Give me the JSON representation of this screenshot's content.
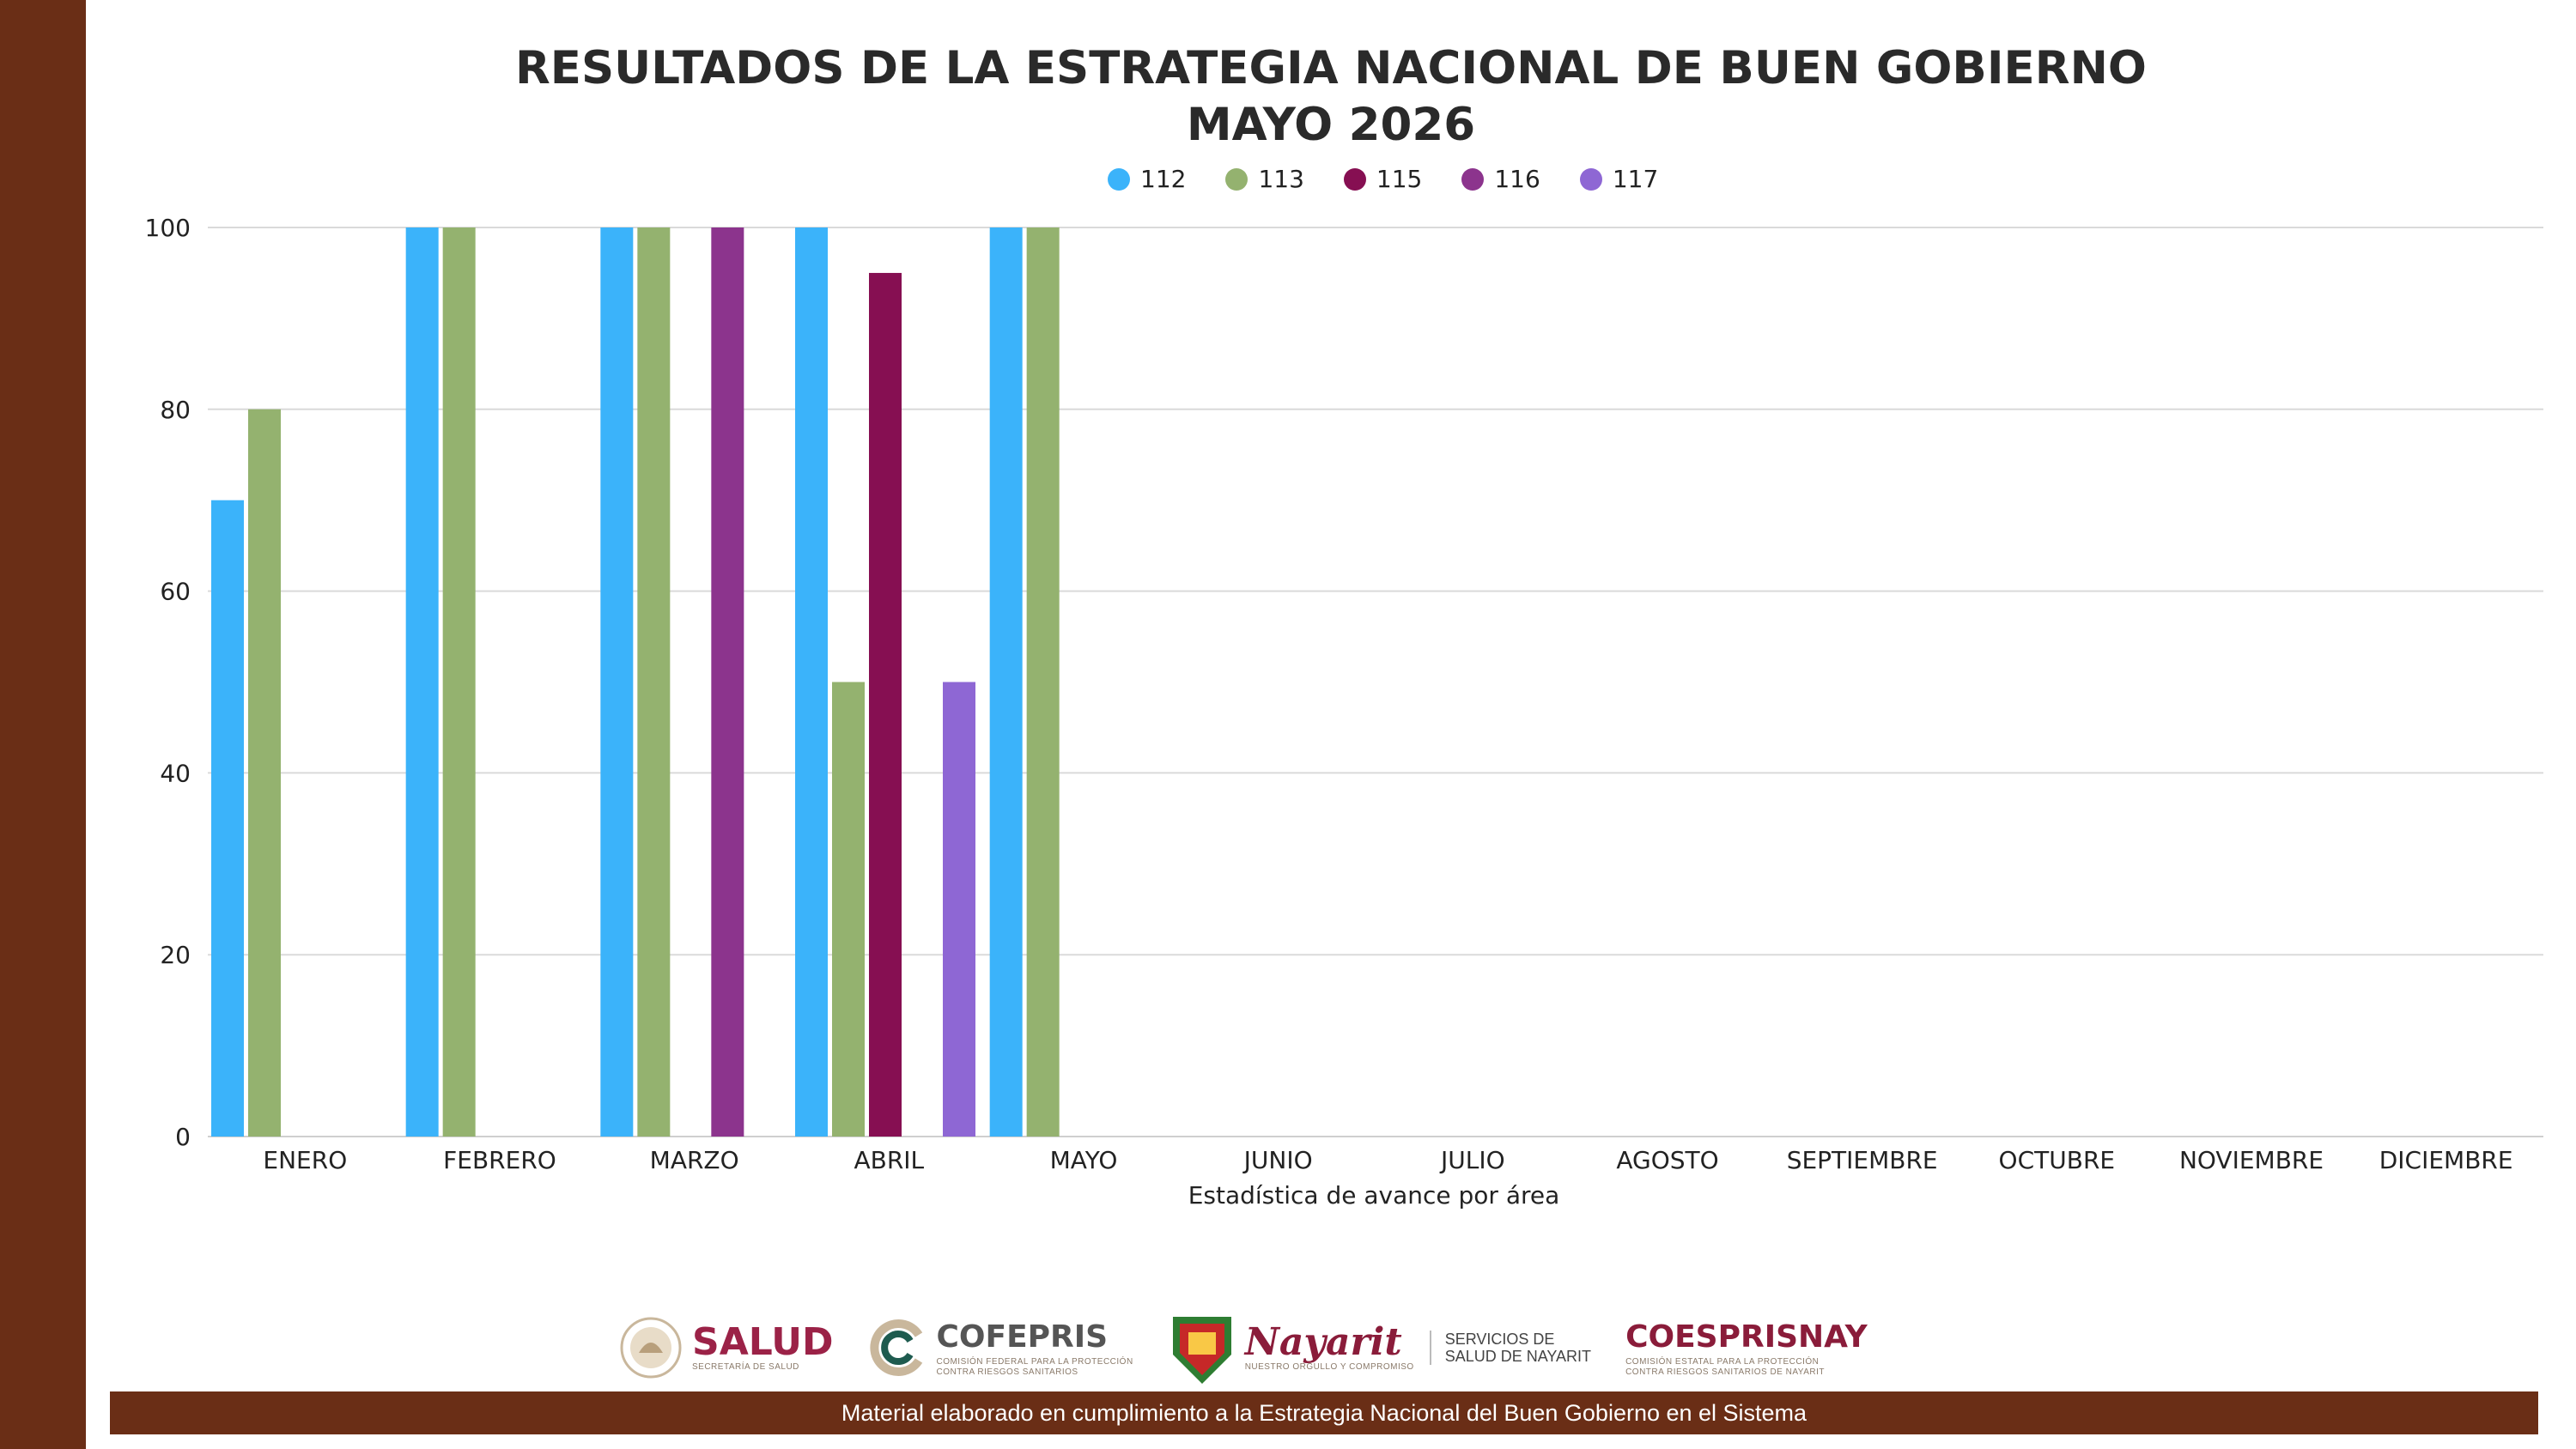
{
  "title": "RESULTADOS DE LA ESTRATEGIA NACIONAL DE BUEN GOBIERNO",
  "subtitle": "MAYO 2026",
  "legend": [
    {
      "label": "112",
      "color": "#3bb3fa"
    },
    {
      "label": "113",
      "color": "#94b26f"
    },
    {
      "label": "115",
      "color": "#860f52"
    },
    {
      "label": "116",
      "color": "#8c348d"
    },
    {
      "label": "117",
      "color": "#8e67d4"
    }
  ],
  "chart_data": {
    "type": "bar",
    "title": "RESULTADOS DE LA ESTRATEGIA NACIONAL DE BUEN GOBIERNO MAYO 2026",
    "xlabel": "Estadística de avance por área",
    "ylabel": "",
    "ylim": [
      0,
      100
    ],
    "yticks": [
      0,
      20,
      40,
      60,
      80,
      100
    ],
    "grid": true,
    "legend_position": "top",
    "categories": [
      "ENERO",
      "FEBRERO",
      "MARZO",
      "ABRIL",
      "MAYO",
      "JUNIO",
      "JULIO",
      "AGOSTO",
      "SEPTIEMBRE",
      "OCTUBRE",
      "NOVIEMBRE",
      "DICIEMBRE"
    ],
    "series": [
      {
        "name": "112",
        "color": "#3bb3fa",
        "values": [
          70,
          100,
          100,
          100,
          100,
          null,
          null,
          null,
          null,
          null,
          null,
          null
        ]
      },
      {
        "name": "113",
        "color": "#94b26f",
        "values": [
          80,
          100,
          100,
          50,
          100,
          null,
          null,
          null,
          null,
          null,
          null,
          null
        ]
      },
      {
        "name": "115",
        "color": "#860f52",
        "values": [
          null,
          null,
          null,
          95,
          null,
          null,
          null,
          null,
          null,
          null,
          null,
          null
        ]
      },
      {
        "name": "116",
        "color": "#8c348d",
        "values": [
          null,
          null,
          100,
          null,
          null,
          null,
          null,
          null,
          null,
          null,
          null,
          null
        ]
      },
      {
        "name": "117",
        "color": "#8e67d4",
        "values": [
          null,
          null,
          null,
          50,
          null,
          null,
          null,
          null,
          null,
          null,
          null,
          null
        ]
      }
    ]
  },
  "logos": {
    "salud": {
      "main": "SALUD",
      "sub": "SECRETARÍA DE SALUD"
    },
    "cofepris": {
      "main": "COFEPRIS",
      "sub1": "COMISIÓN FEDERAL PARA LA PROTECCIÓN",
      "sub2": "CONTRA RIESGOS SANITARIOS"
    },
    "nayarit": {
      "main": "Nayarit",
      "sub": "NUESTRO ORGULLO Y COMPROMISO",
      "line1": "SERVICIOS DE",
      "line2": "SALUD DE NAYARIT"
    },
    "coesprisnay": {
      "main": "COESPRISNAY",
      "sub1": "COMISIÓN ESTATAL PARA LA PROTECCIÓN",
      "sub2": "CONTRA RIESGOS SANITARIOS DE NAYARIT"
    }
  },
  "footer": "Material elaborado en cumplimiento a la Estrategia Nacional  del Buen Gobierno en el Sistema"
}
